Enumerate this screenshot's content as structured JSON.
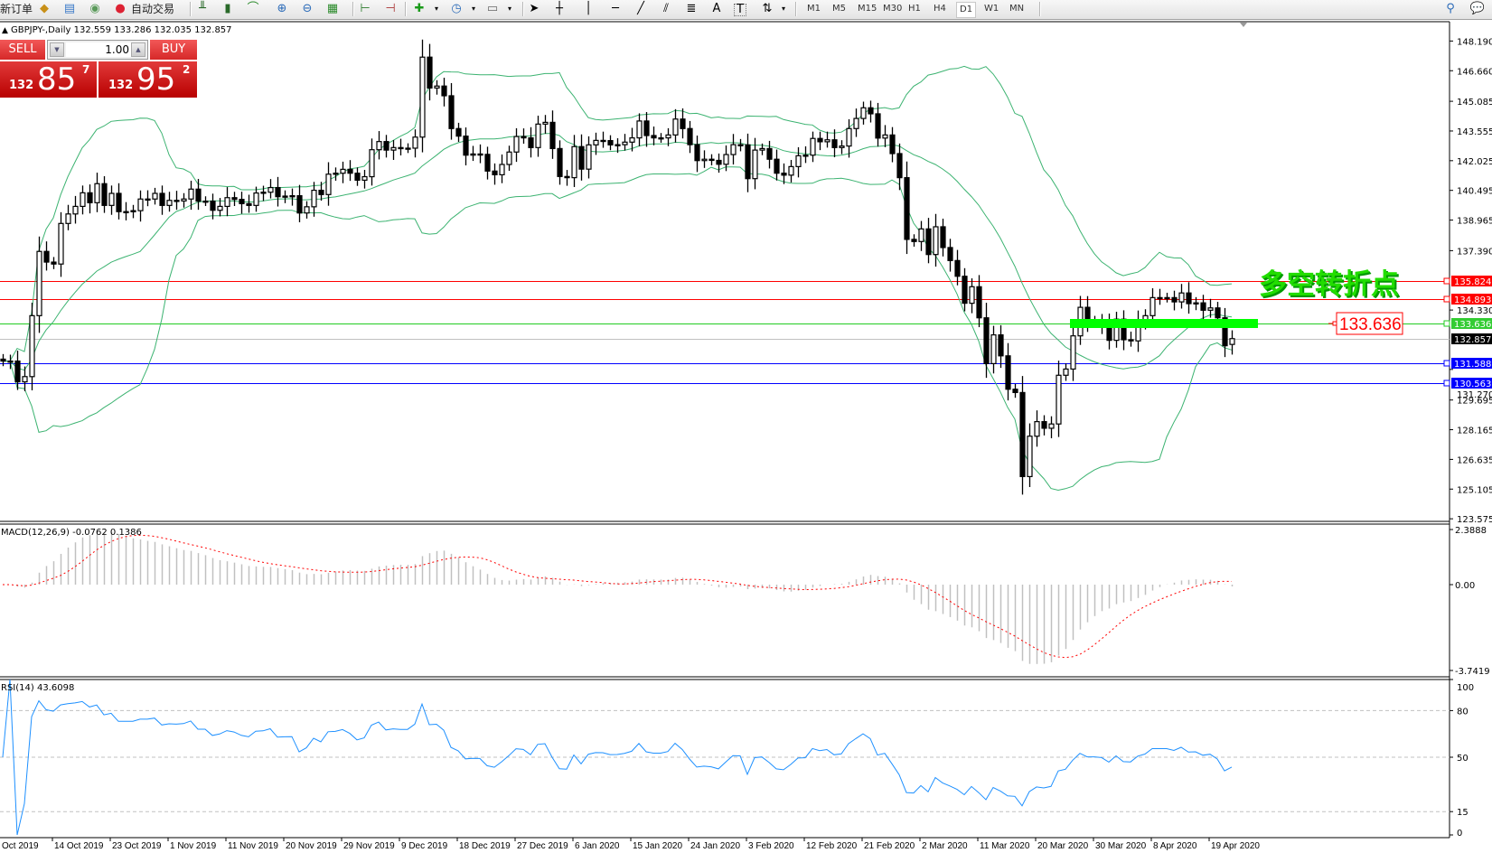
{
  "toolbar": {
    "new_order": "新订单",
    "auto_trading": "自动交易",
    "timeframes": [
      "M1",
      "M5",
      "M15",
      "M30",
      "H1",
      "H4",
      "D1",
      "W1",
      "MN"
    ],
    "active_timeframe": "D1",
    "tool_text_label": "A",
    "tool_label_label": "T"
  },
  "chart_header": "GBPJPY-,Daily  132.559 133.286 132.035 132.857",
  "one_click": {
    "sell_label": "SELL",
    "buy_label": "BUY",
    "lot": "1.00",
    "sell_price": {
      "prefix": "132",
      "big": "85",
      "pip": "7"
    },
    "buy_price": {
      "prefix": "132",
      "big": "95",
      "pip": "2"
    },
    "color": "#d42a2a"
  },
  "annotation": {
    "text": "多空转折点",
    "text_color": "#22dd00",
    "price_label": "133.636",
    "price_label_color": "#ff0000",
    "zone_color": "#00ff00"
  },
  "chart_data": {
    "type": "candlestick",
    "symbol": "GBPJPY-",
    "timeframe": "Daily",
    "last_bar": {
      "open": 132.559,
      "high": 133.286,
      "low": 132.035,
      "close": 132.857
    },
    "first_open": 131.8,
    "close": [
      131.7,
      131.7,
      130.63,
      130.9,
      134.04,
      137.35,
      136.8,
      136.7,
      138.79,
      139.28,
      139.67,
      140.37,
      139.86,
      140.84,
      139.72,
      140.34,
      139.4,
      139.4,
      139.45,
      140.05,
      140.05,
      140.34,
      139.72,
      139.98,
      139.95,
      140.05,
      140.56,
      139.94,
      139.94,
      139.47,
      139.67,
      140.12,
      140.03,
      139.81,
      139.72,
      140.36,
      140.4,
      140.64,
      140.17,
      140.2,
      140.22,
      139.33,
      139.65,
      140.5,
      140.28,
      141.33,
      141.38,
      141.58,
      141.38,
      141.02,
      141.2,
      142.59,
      143.01,
      142.57,
      142.7,
      142.67,
      142.67,
      143.24,
      147.36,
      145.77,
      145.87,
      145.37,
      143.68,
      143.29,
      142.31,
      142.37,
      142.35,
      141.49,
      141.3,
      141.83,
      142.47,
      143.27,
      143.2,
      142.7,
      143.91,
      144.0,
      142.65,
      141.21,
      141.15,
      142.75,
      141.59,
      142.84,
      143.07,
      143.06,
      142.84,
      142.85,
      142.98,
      143.2,
      144.07,
      143.32,
      143.2,
      143.2,
      143.35,
      144.17,
      143.68,
      142.85,
      142.03,
      142.1,
      142.04,
      141.84,
      142.34,
      142.85,
      142.84,
      141.1,
      142.57,
      142.65,
      142.1,
      141.38,
      141.28,
      141.72,
      142.28,
      142.31,
      143.17,
      143.0,
      143.1,
      142.7,
      142.78,
      143.68,
      144.2,
      144.75,
      144.44,
      143.19,
      143.35,
      142.39,
      141.15,
      137.97,
      137.86,
      138.51,
      137.19,
      138.62,
      137.55,
      136.88,
      136.07,
      134.68,
      135.53,
      133.93,
      131.57,
      133.05,
      131.97,
      130.25,
      130.08,
      125.75,
      127.83,
      128.58,
      128.24,
      128.46,
      130.97,
      131.29,
      133.0,
      134.47,
      133.74,
      133.74,
      133.6,
      132.77,
      133.86,
      132.8,
      132.74,
      133.7,
      134.04,
      134.97,
      134.97,
      134.97,
      134.75,
      135.21,
      134.66,
      134.7,
      134.32,
      134.44,
      133.93,
      132.49,
      132.857
    ],
    "price_axis": {
      "min": 123.575,
      "max": 148.19,
      "ticks": [
        "148.190",
        "146.660",
        "145.085",
        "143.555",
        "142.025",
        "140.495",
        "138.965",
        "137.390",
        "134.330",
        "131.270",
        "129.695",
        "128.165",
        "126.635",
        "125.105",
        "123.575"
      ]
    },
    "horizontal_lines": [
      {
        "price": "135.824",
        "color": "#ff0000",
        "tag_color": "#ff0000"
      },
      {
        "price": "134.893",
        "color": "#ff0000",
        "tag_color": "#ff0000"
      },
      {
        "price": "133.636",
        "color": "#22cc22",
        "tag_color": "#33cc33"
      },
      {
        "price": "132.857",
        "color": "#c0c0c0",
        "tag_color": "#000000"
      },
      {
        "price": "131.588",
        "color": "#0000ff",
        "tag_color": "#0000ff"
      },
      {
        "price": "130.563",
        "color": "#0000ff",
        "tag_color": "#0000ff"
      }
    ],
    "bollinger": {
      "period": 20,
      "deviation": 2,
      "color": "#3cb371"
    },
    "date_labels": [
      "Oct 2019",
      "14 Oct 2019",
      "23 Oct 2019",
      "1 Nov 2019",
      "11 Nov 2019",
      "20 Nov 2019",
      "29 Nov 2019",
      "9 Dec 2019",
      "18 Dec 2019",
      "27 Dec 2019",
      "6 Jan 2020",
      "15 Jan 2020",
      "24 Jan 2020",
      "3 Feb 2020",
      "12 Feb 2020",
      "21 Feb 2020",
      "2 Mar 2020",
      "11 Mar 2020",
      "20 Mar 2020",
      "30 Mar 2020",
      "8 Apr 2020",
      "19 Apr 2020"
    ],
    "macd": {
      "label": "MACD(12,26,9) -0.0762 0.1386",
      "fast": 12,
      "slow": 26,
      "signal": 9,
      "axis_max": "2.3888",
      "axis_zero": "0.00",
      "axis_min": "-3.7419",
      "hist_color": "#c0c0c0",
      "signal_color": "#ff0000"
    },
    "rsi": {
      "label": "RSI(14) 43.6098",
      "period": 14,
      "levels": [
        "100",
        "80",
        "50",
        "15",
        "0"
      ],
      "dashed_levels": [
        80,
        50,
        15
      ],
      "color": "#1e90ff"
    }
  }
}
